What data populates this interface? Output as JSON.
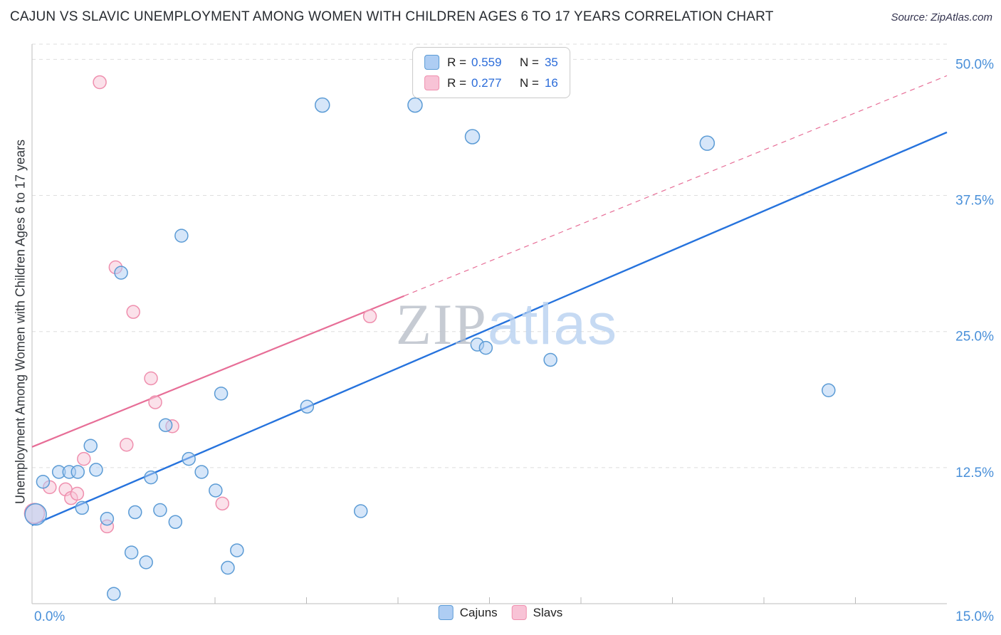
{
  "header": {
    "title": "CAJUN VS SLAVIC UNEMPLOYMENT AMONG WOMEN WITH CHILDREN AGES 6 TO 17 YEARS CORRELATION CHART",
    "source": "Source: ZipAtlas.com"
  },
  "watermark": {
    "zip": "ZIP",
    "atlas": "atlas"
  },
  "legend_box": {
    "rows": [
      {
        "series": "Cajuns",
        "r_label": "R =",
        "r_value": "0.559",
        "n_label": "N =",
        "n_value": "35"
      },
      {
        "series": "Slavs",
        "r_label": "R =",
        "r_value": "0.277",
        "n_label": "N =",
        "n_value": "16"
      }
    ]
  },
  "bottom_legend": [
    {
      "label": "Cajuns"
    },
    {
      "label": "Slavs"
    }
  ],
  "colors": {
    "cajun": {
      "fill": "#aecdf3",
      "stroke": "#5b9bd5",
      "line": "#2673dd"
    },
    "slav": {
      "fill": "#f8c3d6",
      "stroke": "#ef8fae",
      "line": "#e76e97"
    },
    "axis_text": "#4a90d9",
    "legend_value": "#2b6cd9",
    "grid": "#dedede",
    "axis_line": "#c9c9c9",
    "tick": "#b9b9b9"
  },
  "chart_data": {
    "type": "scatter",
    "title": "Cajun vs Slavic Unemployment Among Women with Children Ages 6 to 17 Years",
    "xlabel": "",
    "ylabel": "Unemployment Among Women with Children Ages 6 to 17 years",
    "xlim": [
      0,
      15
    ],
    "ylim": [
      0,
      51.4
    ],
    "grid": true,
    "legend_position": "bottom-center",
    "x_axis_labels": [
      "0.0%",
      "15.0%"
    ],
    "x_minor_ticks": [
      3,
      4.5,
      6,
      7.5,
      9,
      10.5,
      12,
      13.5
    ],
    "y_ticks": [
      {
        "value": 50,
        "label": "50.0%"
      },
      {
        "value": 37.5,
        "label": "37.5%"
      },
      {
        "value": 25,
        "label": "25.0%"
      },
      {
        "value": 12.5,
        "label": "12.5%"
      }
    ],
    "series": [
      {
        "id": "cajuns",
        "name": "Cajuns",
        "R": 0.559,
        "N": 35,
        "color_key": "cajun",
        "trend": {
          "x1": 0,
          "y1": 7.2,
          "x2": 15,
          "y2": 43.3
        },
        "points": [
          [
            0.06,
            8.2,
            15
          ],
          [
            0.18,
            11.2,
            9
          ],
          [
            0.44,
            12.1,
            9
          ],
          [
            0.61,
            12.1,
            9
          ],
          [
            0.75,
            12.1,
            9
          ],
          [
            0.82,
            8.8,
            9
          ],
          [
            0.96,
            14.5,
            9
          ],
          [
            1.05,
            12.3,
            9
          ],
          [
            1.23,
            7.8,
            9
          ],
          [
            1.34,
            0.9,
            9
          ],
          [
            1.46,
            30.4,
            9
          ],
          [
            1.63,
            4.7,
            9
          ],
          [
            1.69,
            8.4,
            9
          ],
          [
            1.87,
            3.8,
            9
          ],
          [
            1.95,
            11.6,
            9
          ],
          [
            2.1,
            8.6,
            9
          ],
          [
            2.19,
            16.4,
            9
          ],
          [
            2.35,
            7.5,
            9
          ],
          [
            2.45,
            33.8,
            9
          ],
          [
            2.57,
            13.3,
            9
          ],
          [
            2.78,
            12.1,
            9
          ],
          [
            3.01,
            10.4,
            9
          ],
          [
            3.1,
            19.3,
            9
          ],
          [
            3.21,
            3.3,
            9
          ],
          [
            3.36,
            4.9,
            9
          ],
          [
            4.51,
            18.1,
            9
          ],
          [
            4.76,
            45.8,
            10
          ],
          [
            5.39,
            8.5,
            9
          ],
          [
            6.28,
            45.8,
            10
          ],
          [
            7.22,
            42.9,
            10
          ],
          [
            7.3,
            23.8,
            9
          ],
          [
            7.44,
            23.5,
            9
          ],
          [
            8.5,
            22.4,
            9
          ],
          [
            11.07,
            42.3,
            10
          ],
          [
            13.06,
            19.6,
            9
          ]
        ]
      },
      {
        "id": "slavs",
        "name": "Slavs",
        "R": 0.277,
        "N": 16,
        "color_key": "slav",
        "trend": {
          "x1": 0,
          "y1": 14.4,
          "x2": 15,
          "y2": 48.5,
          "solid_until": 6.1
        },
        "points": [
          [
            0.04,
            8.3,
            14
          ],
          [
            0.29,
            10.7,
            9
          ],
          [
            0.55,
            10.5,
            9
          ],
          [
            0.64,
            9.7,
            9
          ],
          [
            0.74,
            10.1,
            9
          ],
          [
            0.85,
            13.3,
            9
          ],
          [
            1.11,
            47.9,
            9
          ],
          [
            1.23,
            7.1,
            9
          ],
          [
            1.37,
            30.9,
            9
          ],
          [
            1.55,
            14.6,
            9
          ],
          [
            1.66,
            26.8,
            9
          ],
          [
            1.95,
            20.7,
            9
          ],
          [
            2.02,
            18.5,
            9
          ],
          [
            2.3,
            16.3,
            9
          ],
          [
            3.12,
            9.2,
            9
          ],
          [
            5.54,
            26.4,
            9
          ]
        ]
      }
    ]
  }
}
